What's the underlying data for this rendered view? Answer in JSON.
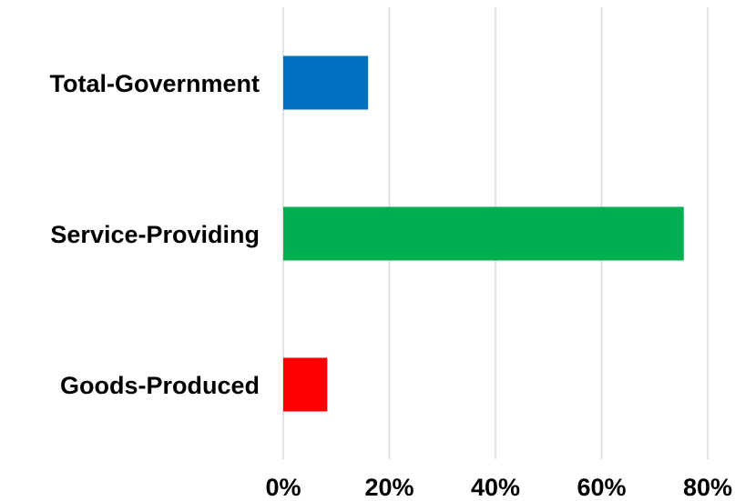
{
  "chart_data": {
    "type": "bar",
    "orientation": "horizontal",
    "title": "",
    "xlabel": "",
    "ylabel": "",
    "categories": [
      "Total-Government",
      "Service-Providing",
      "Goods-Produced"
    ],
    "values": [
      16,
      75.5,
      8.3
    ],
    "colors": [
      "#0070c0",
      "#00b050",
      "#ff0000"
    ],
    "xlim": [
      0,
      80
    ],
    "x_ticks": [
      0,
      20,
      40,
      60,
      80
    ],
    "x_tick_labels": [
      "0%",
      "20%",
      "40%",
      "60%",
      "80%"
    ],
    "grid": "vertical",
    "legend": "none"
  }
}
